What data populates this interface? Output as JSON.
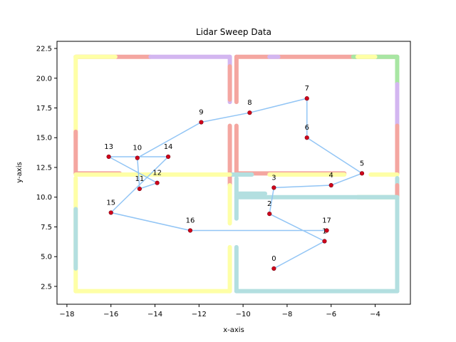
{
  "chart_data": {
    "type": "scatter",
    "title": "Lidar Sweep Data",
    "xlabel": "x-axis",
    "ylabel": "y-axis",
    "xlim": [
      -18.45,
      -2.4
    ],
    "ylim": [
      1.0,
      23.1
    ],
    "xticks": [
      -18,
      -16,
      -14,
      -12,
      -10,
      -8,
      -6,
      -4
    ],
    "yticks": [
      2.5,
      5.0,
      7.5,
      10.0,
      12.5,
      15.0,
      17.5,
      20.0,
      22.5
    ],
    "xtick_labels": [
      "−18",
      "−16",
      "−14",
      "−12",
      "−10",
      "−8",
      "−6",
      "−4"
    ],
    "ytick_labels": [
      "2.5",
      "5.0",
      "7.5",
      "10.0",
      "12.5",
      "15.0",
      "17.5",
      "20.0",
      "22.5"
    ],
    "grid": false,
    "colors": {
      "red": "#f4a6a0",
      "yellow": "#feffa6",
      "purple": "#d3b6f0",
      "teal": "#b3dfe0",
      "green": "#a8e6a3",
      "path": "#92c5f5",
      "waypoint": "#d0021b"
    },
    "wall_segments": [
      {
        "color": "red",
        "x": [
          -17.6,
          -14.2
        ],
        "y": [
          21.8,
          21.8
        ]
      },
      {
        "color": "yellow",
        "x": [
          -17.6,
          -15.8
        ],
        "y": [
          21.8,
          21.8
        ]
      },
      {
        "color": "purple",
        "x": [
          -14.2,
          -10.6
        ],
        "y": [
          21.8,
          21.8
        ]
      },
      {
        "color": "purple",
        "x": [
          -10.6,
          -10.6
        ],
        "y": [
          21.8,
          18.0
        ]
      },
      {
        "color": "red",
        "x": [
          -10.6,
          -10.6
        ],
        "y": [
          21.0,
          18.2
        ]
      },
      {
        "color": "yellow",
        "x": [
          -17.6,
          -17.6
        ],
        "y": [
          21.8,
          15.0
        ]
      },
      {
        "color": "red",
        "x": [
          -17.6,
          -17.6
        ],
        "y": [
          15.5,
          12.0
        ]
      },
      {
        "color": "red",
        "x": [
          -17.6,
          -15.6
        ],
        "y": [
          12.0,
          12.0
        ]
      },
      {
        "color": "yellow",
        "x": [
          -17.6,
          -15.6
        ],
        "y": [
          11.9,
          11.9
        ]
      },
      {
        "color": "red",
        "x": [
          -10.3,
          -3.0
        ],
        "y": [
          21.8,
          21.8
        ]
      },
      {
        "color": "purple",
        "x": [
          -8.8,
          -8.4
        ],
        "y": [
          21.8,
          21.8
        ]
      },
      {
        "color": "green",
        "x": [
          -5.0,
          -3.0
        ],
        "y": [
          21.8,
          21.8
        ]
      },
      {
        "color": "yellow",
        "x": [
          -4.8,
          -4.0
        ],
        "y": [
          21.8,
          21.8
        ]
      },
      {
        "color": "red",
        "x": [
          -10.3,
          -10.3
        ],
        "y": [
          21.8,
          18.0
        ]
      },
      {
        "color": "green",
        "x": [
          -3.0,
          -3.0
        ],
        "y": [
          21.8,
          19.5
        ]
      },
      {
        "color": "purple",
        "x": [
          -3.0,
          -3.0
        ],
        "y": [
          19.5,
          16.0
        ]
      },
      {
        "color": "red",
        "x": [
          -3.0,
          -3.0
        ],
        "y": [
          16.0,
          12.0
        ]
      },
      {
        "color": "red",
        "x": [
          -10.6,
          -10.6
        ],
        "y": [
          16.0,
          11.0
        ]
      },
      {
        "color": "red",
        "x": [
          -10.3,
          -10.3
        ],
        "y": [
          16.0,
          12.0
        ]
      },
      {
        "color": "red",
        "x": [
          -10.3,
          -5.4
        ],
        "y": [
          12.0,
          12.0
        ]
      },
      {
        "color": "yellow",
        "x": [
          -8.8,
          -5.4
        ],
        "y": [
          11.9,
          11.9
        ]
      },
      {
        "color": "yellow",
        "x": [
          -4.2,
          -3.0
        ],
        "y": [
          11.9,
          11.9
        ]
      },
      {
        "color": "teal",
        "x": [
          -10.6,
          -9.6
        ],
        "y": [
          11.9,
          11.9
        ]
      },
      {
        "color": "yellow",
        "x": [
          -15.6,
          -10.6
        ],
        "y": [
          11.9,
          11.9
        ]
      },
      {
        "color": "teal",
        "x": [
          -3.0,
          -3.0
        ],
        "y": [
          11.6,
          2.1
        ]
      },
      {
        "color": "red",
        "x": [
          -3.0,
          -3.0
        ],
        "y": [
          11.0,
          10.0
        ]
      },
      {
        "color": "green",
        "x": [
          -4.8,
          -3.0
        ],
        "y": [
          10.0,
          10.0
        ]
      },
      {
        "color": "teal",
        "x": [
          -10.3,
          -3.0
        ],
        "y": [
          10.0,
          10.0
        ]
      },
      {
        "color": "teal",
        "x": [
          -10.3,
          -9.0
        ],
        "y": [
          10.3,
          10.3
        ]
      },
      {
        "color": "teal",
        "x": [
          -10.3,
          -10.3
        ],
        "y": [
          11.6,
          8.2
        ]
      },
      {
        "color": "yellow",
        "x": [
          -10.6,
          -10.6
        ],
        "y": [
          11.0,
          7.8
        ]
      },
      {
        "color": "yellow",
        "x": [
          -17.6,
          -17.6
        ],
        "y": [
          11.6,
          2.1
        ]
      },
      {
        "color": "teal",
        "x": [
          -17.6,
          -17.6
        ],
        "y": [
          9.0,
          4.0
        ]
      },
      {
        "color": "yellow",
        "x": [
          -17.6,
          -10.6
        ],
        "y": [
          2.1,
          2.1
        ]
      },
      {
        "color": "yellow",
        "x": [
          -10.6,
          -10.6
        ],
        "y": [
          5.8,
          2.1
        ]
      },
      {
        "color": "teal",
        "x": [
          -10.3,
          -10.3
        ],
        "y": [
          5.8,
          2.1
        ]
      },
      {
        "color": "teal",
        "x": [
          -10.3,
          -3.0
        ],
        "y": [
          2.1,
          2.1
        ]
      }
    ],
    "waypoints": [
      {
        "label": "0",
        "x": -8.6,
        "y": 4.0
      },
      {
        "label": "1",
        "x": -6.3,
        "y": 6.3
      },
      {
        "label": "2",
        "x": -8.8,
        "y": 8.6
      },
      {
        "label": "3",
        "x": -8.6,
        "y": 10.8
      },
      {
        "label": "4",
        "x": -6.0,
        "y": 11.0
      },
      {
        "label": "5",
        "x": -4.6,
        "y": 12.0
      },
      {
        "label": "6",
        "x": -7.1,
        "y": 15.0
      },
      {
        "label": "7",
        "x": -7.1,
        "y": 18.3
      },
      {
        "label": "8",
        "x": -9.7,
        "y": 17.1
      },
      {
        "label": "9",
        "x": -11.9,
        "y": 16.3
      },
      {
        "label": "10",
        "x": -14.8,
        "y": 13.3
      },
      {
        "label": "11",
        "x": -14.7,
        "y": 10.7
      },
      {
        "label": "12",
        "x": -13.9,
        "y": 11.2
      },
      {
        "label": "13",
        "x": -16.1,
        "y": 13.4
      },
      {
        "label": "14",
        "x": -13.4,
        "y": 13.4
      },
      {
        "label": "15",
        "x": -16.0,
        "y": 8.7
      },
      {
        "label": "16",
        "x": -12.4,
        "y": 7.2
      },
      {
        "label": "17",
        "x": -6.2,
        "y": 7.2
      }
    ]
  }
}
